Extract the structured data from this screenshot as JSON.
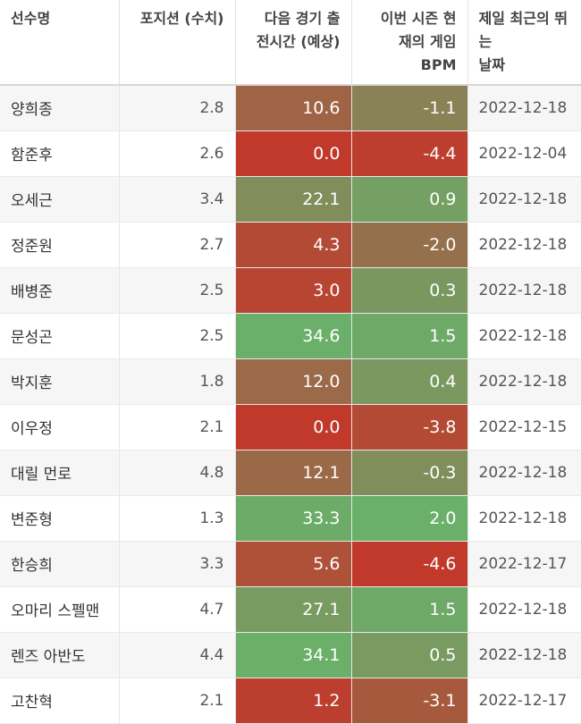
{
  "headers": [
    "선수명",
    "포지션 (수치)",
    "다음 경기 출\n전시간 (예상)",
    "이번 시즌 현\n재의 게임\nBPM",
    "제일 최근의 뛰는\n날짜"
  ],
  "rows": [
    {
      "name": "양희종",
      "pos": "2.8",
      "mins": "10.6",
      "bpm": "-1.1",
      "date": "2022-12-18"
    },
    {
      "name": "함준후",
      "pos": "2.6",
      "mins": "0.0",
      "bpm": "-4.4",
      "date": "2022-12-04"
    },
    {
      "name": "오세근",
      "pos": "3.4",
      "mins": "22.1",
      "bpm": "0.9",
      "date": "2022-12-18"
    },
    {
      "name": "정준원",
      "pos": "2.7",
      "mins": "4.3",
      "bpm": "-2.0",
      "date": "2022-12-18"
    },
    {
      "name": "배병준",
      "pos": "2.5",
      "mins": "3.0",
      "bpm": "0.3",
      "date": "2022-12-18"
    },
    {
      "name": "문성곤",
      "pos": "2.5",
      "mins": "34.6",
      "bpm": "1.5",
      "date": "2022-12-18"
    },
    {
      "name": "박지훈",
      "pos": "1.8",
      "mins": "12.0",
      "bpm": "0.4",
      "date": "2022-12-18"
    },
    {
      "name": "이우정",
      "pos": "2.1",
      "mins": "0.0",
      "bpm": "-3.8",
      "date": "2022-12-15"
    },
    {
      "name": "대릴 먼로",
      "pos": "4.8",
      "mins": "12.1",
      "bpm": "-0.3",
      "date": "2022-12-18"
    },
    {
      "name": "변준형",
      "pos": "1.3",
      "mins": "33.3",
      "bpm": "2.0",
      "date": "2022-12-18"
    },
    {
      "name": "한승희",
      "pos": "3.3",
      "mins": "5.6",
      "bpm": "-4.6",
      "date": "2022-12-17"
    },
    {
      "name": "오마리 스펠맨",
      "pos": "4.7",
      "mins": "27.1",
      "bpm": "1.5",
      "date": "2022-12-18"
    },
    {
      "name": "렌즈 아반도",
      "pos": "4.4",
      "mins": "34.1",
      "bpm": "0.5",
      "date": "2022-12-18"
    },
    {
      "name": "고찬혁",
      "pos": "2.1",
      "mins": "1.2",
      "bpm": "-3.1",
      "date": "2022-12-17"
    }
  ],
  "colors": {
    "low": "#c0392b",
    "mid": "#8a7f55",
    "high": "#6ab06a"
  }
}
